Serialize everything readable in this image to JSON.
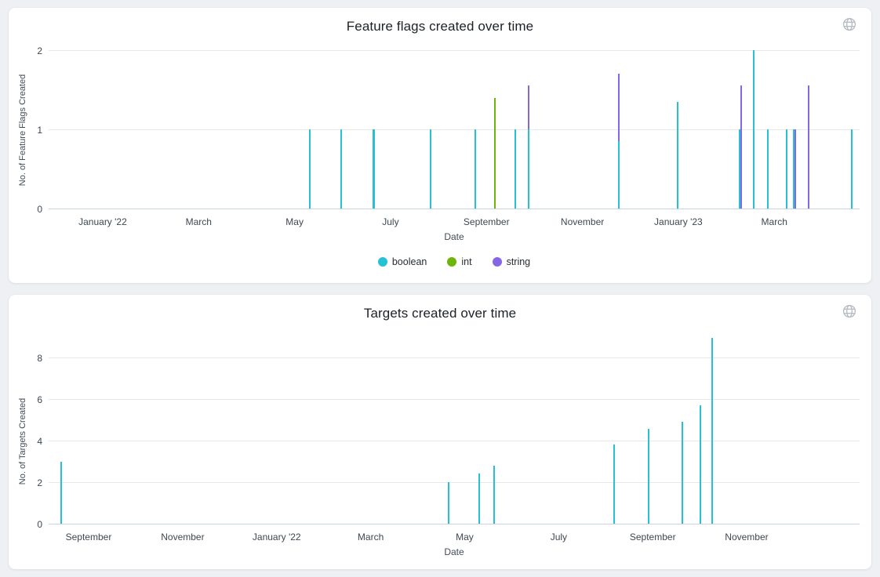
{
  "cards": [
    {
      "title": "Feature flags created over time",
      "corner_icon": "globe-icon"
    },
    {
      "title": "Targets created over time",
      "corner_icon": "globe-icon"
    }
  ],
  "colors": {
    "boolean": "#26c1d4",
    "int": "#6eb50a",
    "string": "#8567e6",
    "grid": "#e5e8ee",
    "axis": "#c9d2e6"
  },
  "chart_data": [
    {
      "type": "bar",
      "title": "Feature flags created over time",
      "xlabel": "Date",
      "ylabel": "No. of Feature Flags Created",
      "x_axis_type": "time",
      "ylim": [
        0,
        2
      ],
      "yticks": [
        0,
        1,
        2
      ],
      "grid": true,
      "legend_position": "bottom",
      "show_legend": true,
      "series": [
        {
          "name": "boolean",
          "color": "#26c1d4"
        },
        {
          "name": "int",
          "color": "#6eb50a"
        },
        {
          "name": "string",
          "color": "#8567e6"
        }
      ],
      "xticks": [
        {
          "label": "January '22",
          "pos_pct": 6.67
        },
        {
          "label": "March",
          "pos_pct": 18.5
        },
        {
          "label": "May",
          "pos_pct": 30.33
        },
        {
          "label": "July",
          "pos_pct": 42.16
        },
        {
          "label": "September",
          "pos_pct": 53.99
        },
        {
          "label": "November",
          "pos_pct": 65.82
        },
        {
          "label": "January '23",
          "pos_pct": 77.65
        },
        {
          "label": "March",
          "pos_pct": 89.48
        }
      ],
      "bars": [
        {
          "date_approx": "2022-05-10",
          "series": "boolean",
          "value": 1,
          "pos_pct": 32.18
        },
        {
          "date_approx": "2022-05-30",
          "series": "boolean",
          "value": 1,
          "pos_pct": 36.1
        },
        {
          "date_approx": "2022-06-19",
          "series": "boolean",
          "value": 1,
          "pos_pct": 40.09,
          "w": 3
        },
        {
          "date_approx": "2022-07-25",
          "series": "boolean",
          "value": 1,
          "pos_pct": 47.1
        },
        {
          "date_approx": "2022-08-22",
          "series": "boolean",
          "value": 1,
          "pos_pct": 52.58
        },
        {
          "date_approx": "2022-09-05",
          "series": "int",
          "value": 1.4,
          "pos_pct": 55.06
        },
        {
          "date_approx": "2022-09-17",
          "series": "boolean",
          "value": 1,
          "pos_pct": 57.57
        },
        {
          "date_approx": "2022-09-26",
          "series": "string",
          "value": 1.55,
          "pos_pct": 59.16
        },
        {
          "date_approx": "2022-09-26",
          "series": "boolean",
          "value": 1,
          "pos_pct": 59.16
        },
        {
          "date_approx": "2022-11-22",
          "series": "string",
          "value": 1.7,
          "pos_pct": 70.28
        },
        {
          "date_approx": "2022-11-22",
          "series": "boolean",
          "value": 0.85,
          "pos_pct": 70.28
        },
        {
          "date_approx": "2022-12-29",
          "series": "boolean",
          "value": 1.35,
          "pos_pct": 77.59
        },
        {
          "date_approx": "2023-02-07",
          "series": "string",
          "value": 1.55,
          "pos_pct": 85.42
        },
        {
          "date_approx": "2023-02-07",
          "series": "boolean",
          "value": 1,
          "pos_pct": 85.23
        },
        {
          "date_approx": "2023-02-15",
          "series": "boolean",
          "value": 2,
          "pos_pct": 86.91
        },
        {
          "date_approx": "2023-02-24",
          "series": "boolean",
          "value": 1,
          "pos_pct": 88.71
        },
        {
          "date_approx": "2023-03-07",
          "series": "boolean",
          "value": 1,
          "pos_pct": 91.03
        },
        {
          "date_approx": "2023-03-11",
          "series": "boolean",
          "value": 1,
          "pos_pct": 91.85
        },
        {
          "date_approx": "2023-03-11",
          "series": "string",
          "value": 1,
          "pos_pct": 92.08
        },
        {
          "date_approx": "2023-03-20",
          "series": "string",
          "value": 1.55,
          "pos_pct": 93.68
        },
        {
          "date_approx": "2023-04-17",
          "series": "boolean",
          "value": 1,
          "pos_pct": 99.03
        }
      ]
    },
    {
      "type": "bar",
      "title": "Targets created over time",
      "xlabel": "Date",
      "ylabel": "No. of Targets Created",
      "x_axis_type": "time",
      "ylim": [
        0,
        9.3
      ],
      "yticks": [
        0,
        2,
        4,
        6,
        8
      ],
      "grid": true,
      "show_legend": false,
      "series": [
        {
          "name": "targets",
          "color": "#26c1d4"
        }
      ],
      "xticks": [
        {
          "label": "September",
          "pos_pct": 4.93
        },
        {
          "label": "November",
          "pos_pct": 16.53
        },
        {
          "label": "January '22",
          "pos_pct": 28.12
        },
        {
          "label": "March",
          "pos_pct": 39.71
        },
        {
          "label": "May",
          "pos_pct": 51.3
        },
        {
          "label": "July",
          "pos_pct": 62.9
        },
        {
          "label": "September",
          "pos_pct": 74.49
        },
        {
          "label": "November",
          "pos_pct": 86.07
        }
      ],
      "bars": [
        {
          "date_approx": "2021-08-14",
          "series": "targets",
          "value": 3,
          "pos_pct": 1.58
        },
        {
          "date_approx": "2022-04-13",
          "series": "targets",
          "value": 2,
          "pos_pct": 49.29
        },
        {
          "date_approx": "2022-05-03",
          "series": "targets",
          "value": 2.4,
          "pos_pct": 53.09
        },
        {
          "date_approx": "2022-05-13",
          "series": "targets",
          "value": 2.8,
          "pos_pct": 54.93
        },
        {
          "date_approx": "2022-08-03",
          "series": "targets",
          "value": 3.8,
          "pos_pct": 69.73
        },
        {
          "date_approx": "2022-08-26",
          "series": "targets",
          "value": 4.55,
          "pos_pct": 74.01
        },
        {
          "date_approx": "2022-09-18",
          "series": "targets",
          "value": 4.9,
          "pos_pct": 78.14
        },
        {
          "date_approx": "2022-09-30",
          "series": "targets",
          "value": 5.7,
          "pos_pct": 80.34
        },
        {
          "date_approx": "2022-10-08",
          "series": "targets",
          "value": 8.95,
          "pos_pct": 81.79
        }
      ]
    }
  ]
}
